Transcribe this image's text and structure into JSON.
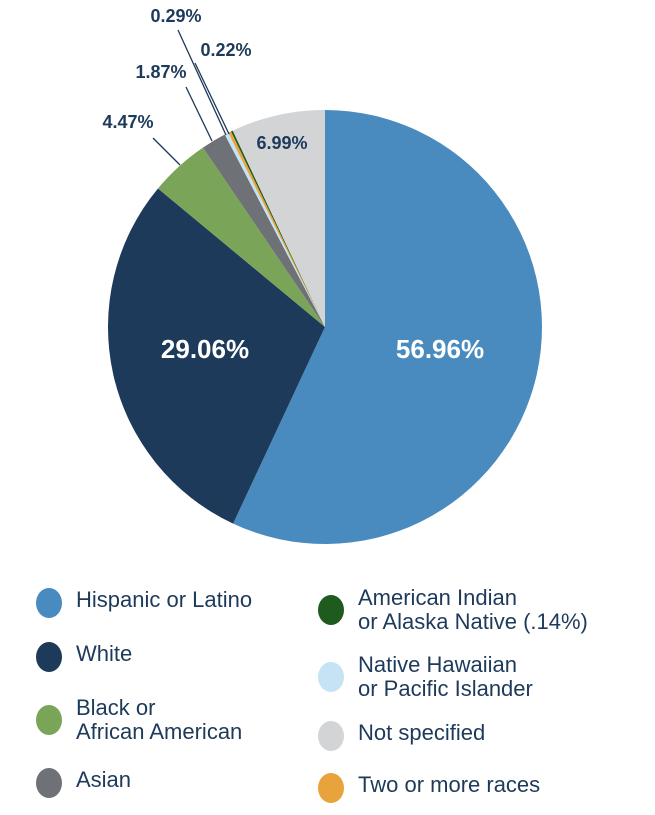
{
  "chart_data": {
    "type": "pie",
    "slices": [
      {
        "name": "Hispanic or Latino",
        "value": 56.96,
        "label": "56.96%",
        "color": "#4a8bbf"
      },
      {
        "name": "White",
        "value": 29.06,
        "label": "29.06%",
        "color": "#1e3a5a"
      },
      {
        "name": "Black or African American",
        "value": 4.47,
        "label": "4.47%",
        "color": "#7aa457"
      },
      {
        "name": "Asian",
        "value": 1.87,
        "label": "1.87%",
        "color": "#6e7276"
      },
      {
        "name": "Native Hawaiian or Pacific Islander",
        "value": 0.29,
        "label": "0.29%",
        "color": "#c5e3f4"
      },
      {
        "name": "Two or more races",
        "value": 0.22,
        "label": "0.22%",
        "color": "#e8a33d"
      },
      {
        "name": "American Indian or Alaska Native",
        "value": 0.14,
        "label": "",
        "color": "#1f5a1e"
      },
      {
        "name": "Not specified",
        "value": 6.99,
        "label": "6.99%",
        "color": "#d3d4d6"
      }
    ]
  },
  "legend": {
    "hispanic": {
      "label": "Hispanic or Latino",
      "color": "#4a8bbf"
    },
    "white": {
      "label": "White",
      "color": "#1e3a5a"
    },
    "black": {
      "label": "Black or\nAfrican American",
      "color": "#7aa457"
    },
    "asian": {
      "label": "Asian",
      "color": "#6e7276"
    },
    "american_indian": {
      "label": "American Indian\nor Alaska Native (.14%)",
      "color": "#1f5a1e"
    },
    "native_hawaiian": {
      "label": "Native Hawaiian\nor Pacific Islander",
      "color": "#c5e3f4"
    },
    "not_specified": {
      "label": "Not specified",
      "color": "#d3d4d6"
    },
    "two_or_more": {
      "label": "Two or more races",
      "color": "#e8a33d"
    }
  }
}
